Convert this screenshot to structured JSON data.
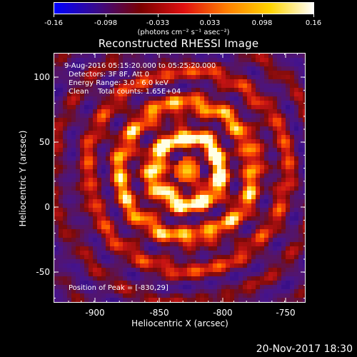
{
  "colorbar": {
    "ticks": [
      "-0.16",
      "-0.098",
      "-0.033",
      "0.033",
      "0.098",
      "0.16"
    ],
    "units": "(photons cm⁻² s⁻¹ asec⁻²)",
    "stops": [
      "#0000ff",
      "#3a0a8a",
      "#7a0000",
      "#e01010",
      "#ff8000",
      "#ffd400",
      "#ffffff"
    ]
  },
  "title": "Reconstructed RHESSI Image",
  "annotations": {
    "time_range": "9-Aug-2016 05:15:20.000 to 05:25:20.000",
    "detectors": "Detectors: 3F 8F, Att 0",
    "energy": "Energy Range: 3.0 - 6.0 keV",
    "clean": "Clean    Total counts: 1.65E+04",
    "peak": "Position of Peak = [-830,29]"
  },
  "axes": {
    "xlabel": "Heliocentric X (arcsec)",
    "ylabel": "Heliocentric Y (arcsec)",
    "xticks": [
      "-900",
      "-850",
      "-800",
      "-750"
    ],
    "yticks": [
      "100",
      "50",
      "0",
      "-50"
    ],
    "xlim": [
      -935,
      -737
    ],
    "ylim": [
      -72,
      124
    ]
  },
  "footer": {
    "date": "20-Nov-2017 18:30"
  }
}
